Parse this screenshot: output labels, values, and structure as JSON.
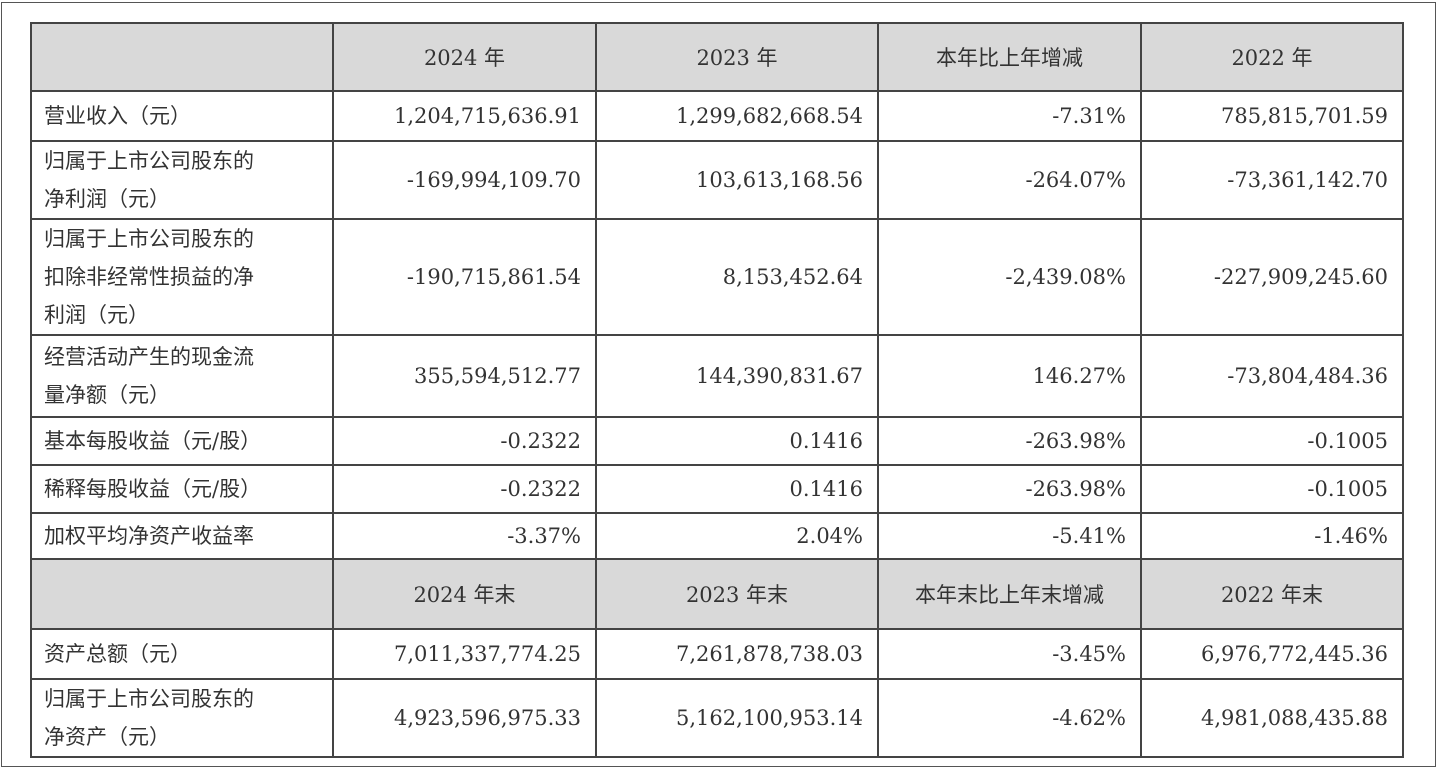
{
  "header1": [
    "",
    "2024 年",
    "2023 年",
    "本年比上年增减",
    "2022 年"
  ],
  "header2": [
    "",
    "2024 年末",
    "2023 年末",
    "本年末比上年末增减",
    "2022 年末"
  ],
  "rows1": [
    {
      "label": [
        "营业收入（元）"
      ],
      "values": [
        "1,204,715,636.91",
        "1,299,682,668.54",
        "-7.31%",
        "785,815,701.59"
      ]
    },
    {
      "label": [
        "归属于上市公司股东的",
        "净利润（元）"
      ],
      "values": [
        "-169,994,109.70",
        "103,613,168.56",
        "-264.07%",
        "-73,361,142.70"
      ]
    },
    {
      "label": [
        "归属于上市公司股东的",
        "扣除非经常性损益的净",
        "利润（元）"
      ],
      "values": [
        "-190,715,861.54",
        "8,153,452.64",
        "-2,439.08%",
        "-227,909,245.60"
      ]
    },
    {
      "label": [
        "经营活动产生的现金流",
        "量净额（元）"
      ],
      "values": [
        "355,594,512.77",
        "144,390,831.67",
        "146.27%",
        "-73,804,484.36"
      ]
    },
    {
      "label": [
        "基本每股收益（元/股）"
      ],
      "values": [
        "-0.2322",
        "0.1416",
        "-263.98%",
        "-0.1005"
      ]
    },
    {
      "label": [
        "稀释每股收益（元/股）"
      ],
      "values": [
        "-0.2322",
        "0.1416",
        "-263.98%",
        "-0.1005"
      ]
    },
    {
      "label": [
        "加权平均净资产收益率"
      ],
      "values": [
        "-3.37%",
        "2.04%",
        "-5.41%",
        "-1.46%"
      ]
    }
  ],
  "rows2": [
    {
      "label": [
        "资产总额（元）"
      ],
      "values": [
        "7,011,337,774.25",
        "7,261,878,738.03",
        "-3.45%",
        "6,976,772,445.36"
      ]
    },
    {
      "label": [
        "归属于上市公司股东的",
        "净资产（元）"
      ],
      "values": [
        "4,923,596,975.33",
        "5,162,100,953.14",
        "-4.62%",
        "4,981,088,435.88"
      ]
    }
  ],
  "colors": {
    "header_bg": "#d9d9d9",
    "border": "#444444"
  }
}
